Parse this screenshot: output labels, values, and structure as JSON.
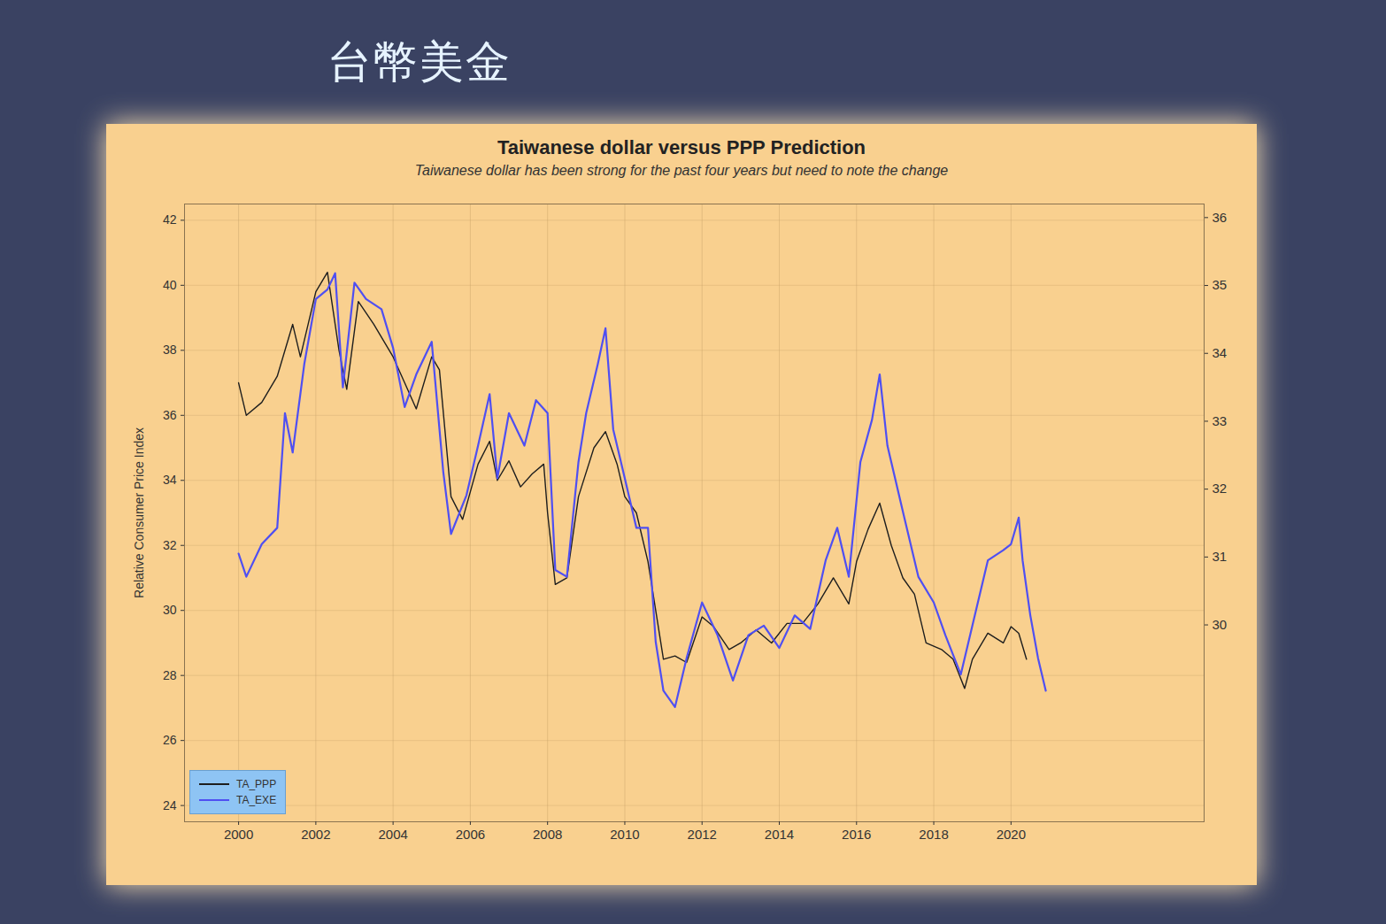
{
  "slide_title": "台幣美金",
  "chart_data": {
    "type": "line",
    "title": "Taiwanese dollar versus PPP Prediction",
    "subtitle": "Taiwanese dollar has been strong for the past four years but need to note the change",
    "ylabel": "Relative Consumer Price Index",
    "xlim": [
      1998.6,
      2025
    ],
    "xticks": [
      2000,
      2002,
      2004,
      2006,
      2008,
      2010,
      2012,
      2014,
      2016,
      2018,
      2020
    ],
    "ylim": [
      23.5,
      42.5
    ],
    "yticks": [
      24,
      26,
      28,
      30,
      32,
      34,
      36,
      38,
      40,
      42
    ],
    "y2lim": [
      27.1,
      36.2
    ],
    "y2ticks": [
      30,
      31,
      32,
      33,
      34,
      35,
      36
    ],
    "grid": true,
    "legend": "lower left",
    "series": [
      {
        "name": "TA_PPP",
        "color": "#1e1e1e",
        "x": [
          2000.0,
          2000.2,
          2000.6,
          2001.0,
          2001.4,
          2001.6,
          2002.0,
          2002.3,
          2002.6,
          2002.8,
          2003.1,
          2003.5,
          2004.0,
          2004.3,
          2004.6,
          2005.0,
          2005.2,
          2005.5,
          2005.8,
          2006.2,
          2006.5,
          2006.7,
          2007.0,
          2007.3,
          2007.6,
          2007.9,
          2008.0,
          2008.2,
          2008.5,
          2008.8,
          2009.2,
          2009.5,
          2009.8,
          2010.0,
          2010.3,
          2010.6,
          2010.8,
          2011.0,
          2011.3,
          2011.6,
          2012.0,
          2012.3,
          2012.7,
          2013.0,
          2013.4,
          2013.8,
          2014.2,
          2014.6,
          2015.0,
          2015.4,
          2015.8,
          2016.0,
          2016.3,
          2016.6,
          2016.9,
          2017.2,
          2017.5,
          2017.8,
          2018.2,
          2018.5,
          2018.8,
          2019.0,
          2019.4,
          2019.8,
          2020.0,
          2020.2,
          2020.4
        ],
        "values": [
          37.0,
          36.0,
          36.4,
          37.2,
          38.8,
          37.8,
          39.8,
          40.4,
          38.0,
          36.8,
          39.5,
          38.8,
          37.8,
          37.0,
          36.2,
          37.8,
          37.4,
          33.5,
          32.8,
          34.5,
          35.2,
          34.0,
          34.6,
          33.8,
          34.2,
          34.5,
          33.0,
          30.8,
          31.0,
          33.5,
          35.0,
          35.5,
          34.5,
          33.5,
          33.0,
          31.5,
          30.0,
          28.5,
          28.6,
          28.4,
          29.8,
          29.5,
          28.8,
          29.0,
          29.4,
          29.0,
          29.6,
          29.6,
          30.2,
          31.0,
          30.2,
          31.5,
          32.5,
          33.3,
          32.0,
          31.0,
          30.5,
          29.0,
          28.8,
          28.5,
          27.6,
          28.5,
          29.3,
          29.0,
          29.5,
          29.3,
          28.5
        ]
      },
      {
        "name": "TA_EXE",
        "color": "#4f4ff2",
        "axis": "y2",
        "x": [
          2000.0,
          2000.2,
          2000.6,
          2001.0,
          2001.2,
          2001.4,
          2001.7,
          2002.0,
          2002.3,
          2002.5,
          2002.7,
          2003.0,
          2003.3,
          2003.7,
          2004.0,
          2004.3,
          2004.6,
          2005.0,
          2005.3,
          2005.5,
          2005.9,
          2006.2,
          2006.5,
          2006.7,
          2007.0,
          2007.4,
          2007.7,
          2008.0,
          2008.2,
          2008.5,
          2008.8,
          2009.0,
          2009.3,
          2009.5,
          2009.7,
          2010.0,
          2010.3,
          2010.6,
          2010.8,
          2011.0,
          2011.3,
          2011.6,
          2012.0,
          2012.4,
          2012.8,
          2013.2,
          2013.6,
          2014.0,
          2014.4,
          2014.8,
          2015.2,
          2015.5,
          2015.8,
          2016.1,
          2016.4,
          2016.6,
          2016.8,
          2017.2,
          2017.6,
          2018.0,
          2018.3,
          2018.7,
          2019.0,
          2019.4,
          2019.8,
          2020.0,
          2020.2,
          2020.3,
          2020.5,
          2020.7,
          2020.9
        ],
        "values": [
          31.05,
          30.71,
          31.19,
          31.43,
          33.12,
          32.54,
          33.84,
          34.8,
          34.94,
          35.18,
          33.5,
          35.04,
          34.8,
          34.65,
          34.08,
          33.21,
          33.69,
          34.17,
          32.25,
          31.34,
          31.91,
          32.64,
          33.4,
          32.16,
          33.12,
          32.64,
          33.31,
          33.12,
          30.81,
          30.71,
          32.4,
          33.12,
          33.84,
          34.37,
          32.88,
          32.16,
          31.43,
          31.43,
          29.75,
          29.03,
          28.79,
          29.51,
          30.33,
          29.85,
          29.18,
          29.85,
          29.99,
          29.66,
          30.14,
          29.94,
          30.95,
          31.43,
          30.71,
          32.4,
          33.02,
          33.69,
          32.64,
          31.67,
          30.71,
          30.33,
          29.85,
          29.27,
          29.99,
          30.95,
          31.1,
          31.19,
          31.58,
          30.95,
          30.14,
          29.51,
          29.03
        ]
      }
    ]
  }
}
